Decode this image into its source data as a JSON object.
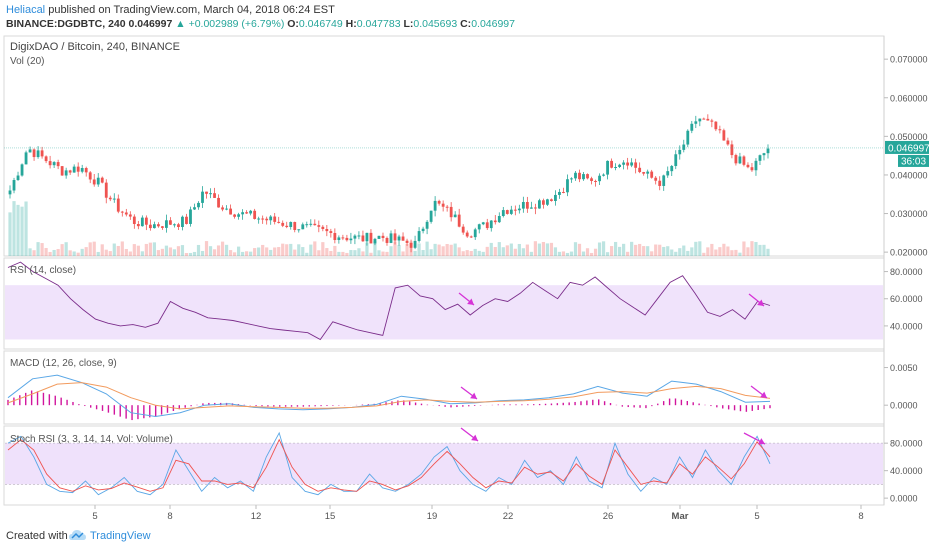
{
  "header": {
    "author": "Heliacal",
    "published_text": "published on TradingView.com, March 04, 2018 06:24 EST",
    "symbol_line": "BINANCE:DGDBTC, 240",
    "price": "0.046997",
    "change": "+0.002989 (+6.79%)",
    "o_label": "O:",
    "o_val": "0.046749",
    "h_label": "H:",
    "h_val": "0.047783",
    "l_label": "L:",
    "l_val": "0.045693",
    "c_label": "C:",
    "c_val": "0.046997"
  },
  "footer": {
    "created": "Created with",
    "brand": "TradingView"
  },
  "colors": {
    "up": "#26a69a",
    "down": "#ef5350",
    "rsi": "#7b2d8b",
    "band": "#e9d7f9",
    "macd": "#5aa7e6",
    "signal": "#f29b5e",
    "hist": "#d1159d",
    "arrow": "#d633d6"
  },
  "chart_data": [
    {
      "type": "candlestick",
      "title": "DigixDAO / Bitcoin, 240, BINANCE",
      "subtitle": "Vol (20)",
      "x_ticks": [
        "5",
        "8",
        "12",
        "15",
        "19",
        "22",
        "26",
        "Mar",
        "5",
        "8"
      ],
      "y_ticks": [
        "0.070000",
        "0.060000",
        "0.050000",
        "0.040000",
        "0.030000",
        "0.020000"
      ],
      "ylim": [
        0.019,
        0.076
      ],
      "last_price_label": "0.046997",
      "countdown_label": "36:03",
      "approx_close_path": [
        0.036,
        0.047,
        0.044,
        0.041,
        0.042,
        0.038,
        0.032,
        0.028,
        0.027,
        0.0275,
        0.028,
        0.036,
        0.032,
        0.03,
        0.029,
        0.028,
        0.027,
        0.026,
        0.025,
        0.024,
        0.0235,
        0.024,
        0.023,
        0.022,
        0.033,
        0.03,
        0.025,
        0.027,
        0.031,
        0.032,
        0.033,
        0.035,
        0.04,
        0.038,
        0.043,
        0.044,
        0.04,
        0.038,
        0.046,
        0.055,
        0.052,
        0.045,
        0.041,
        0.047
      ]
    },
    {
      "type": "line",
      "title": "RSI (14, close)",
      "y_ticks": [
        "80.0000",
        "60.0000",
        "40.0000"
      ],
      "ylim": [
        23,
        90
      ],
      "band": [
        30,
        70
      ],
      "approx_values": [
        83,
        87,
        80,
        75,
        70,
        60,
        52,
        45,
        42,
        40,
        41,
        39,
        42,
        58,
        53,
        50,
        46,
        45,
        44,
        42,
        40,
        38,
        37,
        36,
        35,
        30,
        43,
        40,
        37,
        35,
        33,
        68,
        70,
        62,
        60,
        52,
        56,
        48,
        55,
        60,
        58,
        64,
        72,
        66,
        60,
        72,
        70,
        76,
        68,
        60,
        54,
        48,
        60,
        72,
        77,
        64,
        50,
        47,
        52,
        45,
        58,
        55
      ]
    },
    {
      "type": "line",
      "title": "MACD (12, 26, close, 9)",
      "y_ticks": [
        "0.0050",
        "0.0000"
      ],
      "ylim": [
        -0.0025,
        0.0072
      ],
      "series": [
        {
          "values": [
            0.001,
            0.0035,
            0.004,
            0.003,
            0.0015,
            -0.001,
            -0.0015,
            -0.001,
            0.0,
            0.0002,
            -0.0003,
            -0.0005,
            -0.0006,
            -0.0005,
            -0.0003,
            0.0001,
            0.0012,
            0.0008,
            0.0002,
            0.0003,
            0.0006,
            0.0007,
            0.001,
            0.0015,
            0.0025,
            0.0016,
            0.0012,
            0.0032,
            0.0028,
            0.0018,
            0.0004,
            0.0005
          ]
        },
        {
          "values": [
            0.0003,
            0.0015,
            0.0028,
            0.003,
            0.0024,
            0.001,
            0.0,
            -0.0005,
            -0.0003,
            -0.0001,
            -0.0002,
            -0.0003,
            -0.0004,
            -0.0004,
            -0.0003,
            -0.0001,
            0.0005,
            0.0007,
            0.0005,
            0.0004,
            0.0005,
            0.0006,
            0.0008,
            0.0011,
            0.0017,
            0.0018,
            0.0016,
            0.0022,
            0.0025,
            0.0022,
            0.0013,
            0.0009
          ]
        }
      ],
      "histogram": [
        0.0007,
        0.002,
        0.0012,
        0.0,
        -0.0009,
        -0.002,
        -0.0015,
        -0.0005,
        0.0003,
        0.0003,
        -0.0001,
        -0.0002,
        -0.0002,
        -0.0001,
        0.0,
        0.0002,
        0.0007,
        0.0001,
        -0.0003,
        -0.0001,
        0.0001,
        0.0001,
        0.0002,
        0.0004,
        0.0008,
        -0.0002,
        -0.0004,
        0.001,
        0.0003,
        -0.0004,
        -0.0009,
        -0.0004
      ]
    },
    {
      "type": "line",
      "title": "Stoch RSI (3, 3, 14, 14, Vol: Volume)",
      "y_ticks": [
        "80.0000",
        "40.0000",
        "0.0000"
      ],
      "ylim": [
        -10,
        105
      ],
      "band": [
        20,
        80
      ],
      "series": [
        {
          "values": [
            80,
            90,
            60,
            20,
            10,
            8,
            25,
            5,
            15,
            30,
            10,
            5,
            20,
            70,
            40,
            10,
            30,
            15,
            25,
            10,
            60,
            95,
            30,
            10,
            5,
            20,
            10,
            10,
            35,
            15,
            10,
            20,
            35,
            60,
            75,
            40,
            20,
            10,
            30,
            20,
            55,
            30,
            40,
            20,
            60,
            25,
            15,
            80,
            35,
            10,
            30,
            20,
            60,
            30,
            70,
            40,
            20,
            60,
            90,
            50
          ]
        },
        {
          "values": [
            70,
            85,
            70,
            35,
            15,
            10,
            18,
            12,
            14,
            22,
            16,
            10,
            15,
            55,
            50,
            25,
            25,
            20,
            22,
            15,
            45,
            85,
            45,
            20,
            10,
            15,
            12,
            10,
            25,
            20,
            12,
            18,
            30,
            50,
            68,
            50,
            30,
            15,
            25,
            22,
            45,
            35,
            38,
            25,
            50,
            32,
            20,
            70,
            45,
            20,
            25,
            22,
            50,
            35,
            60,
            45,
            28,
            50,
            82,
            60
          ]
        }
      ]
    }
  ]
}
